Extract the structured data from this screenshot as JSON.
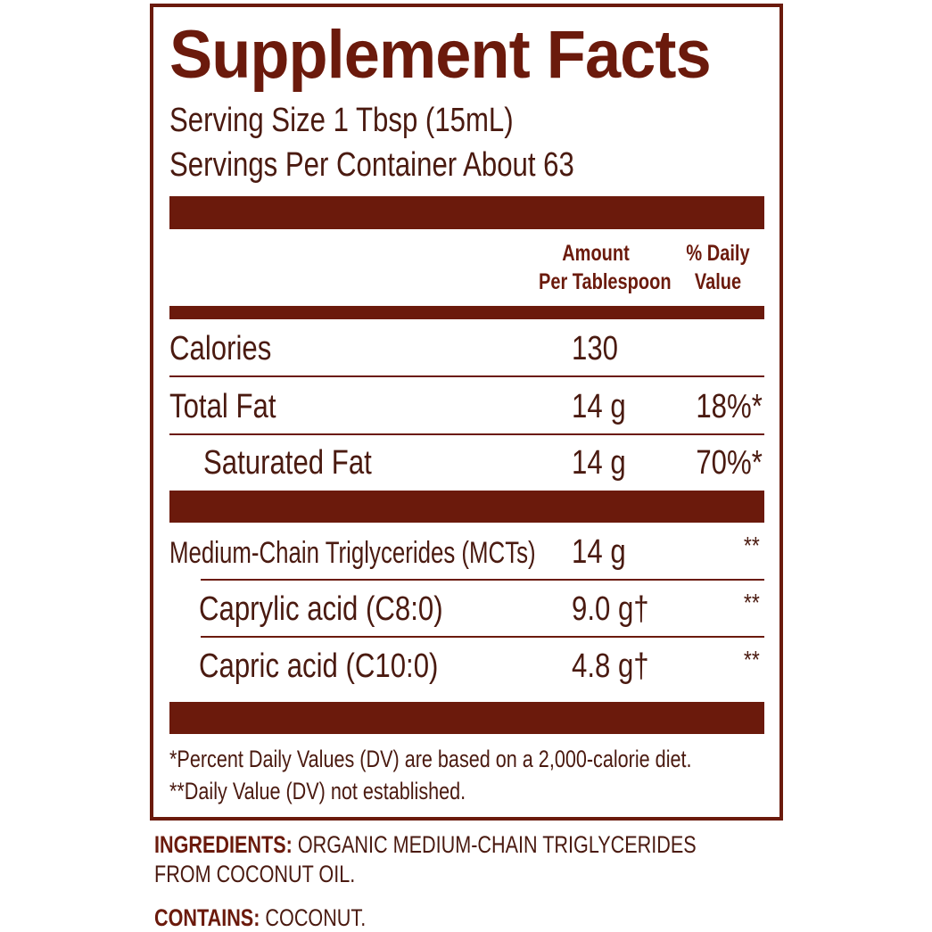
{
  "title": "Supplement Facts",
  "serving_size": "Serving Size 1 Tbsp (15mL)",
  "servings_per_container": "Servings Per Container About 63",
  "columns": {
    "amount_line1": "Amount",
    "amount_line2": "Per Tablespoon",
    "dv_line1": "% Daily",
    "dv_line2": "Value"
  },
  "rows": [
    {
      "name": "Calories",
      "amount": "130",
      "dv": ""
    },
    {
      "name": "Total Fat",
      "amount": "14 g",
      "dv": "18%*"
    },
    {
      "name": "Saturated Fat",
      "amount": "14 g",
      "dv": "70%*"
    },
    {
      "name": "Medium-Chain Triglycerides (MCTs)",
      "amount": "14 g",
      "dv": "**"
    },
    {
      "name": "Caprylic acid (C8:0)",
      "amount": "9.0 g†",
      "dv": "**"
    },
    {
      "name": "Capric acid (C10:0)",
      "amount": "4.8 g†",
      "dv": "**"
    }
  ],
  "footnotes": [
    "*Percent Daily Values (DV) are based on a 2,000-calorie diet.",
    "**Daily Value (DV) not established."
  ],
  "ingredients": {
    "label": "INGREDIENTS:",
    "text_line1": "ORGANIC MEDIUM-CHAIN TRIGLYCERIDES",
    "text_line2": "FROM COCONUT OIL."
  },
  "contains": {
    "label": "CONTAINS:",
    "text": "COCONUT."
  },
  "colors": {
    "brand": "#6b1a0c",
    "text": "#4a1a10"
  }
}
